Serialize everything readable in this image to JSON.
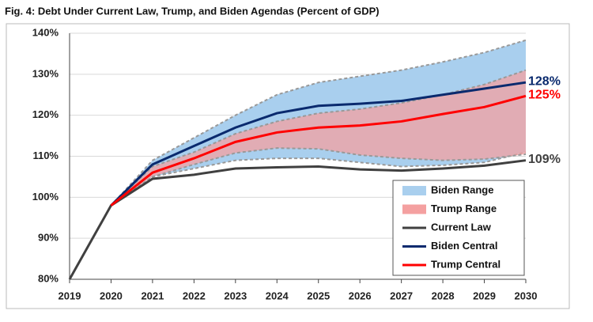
{
  "chart_data": {
    "type": "line",
    "title": "Fig. 4: Debt Under Current Law, Trump, and Biden Agendas (Percent of GDP)",
    "x": [
      2019,
      2020,
      2021,
      2022,
      2023,
      2024,
      2025,
      2026,
      2027,
      2028,
      2029,
      2030
    ],
    "xlim": [
      2019,
      2030
    ],
    "xticks": [
      2019,
      2020,
      2021,
      2022,
      2023,
      2024,
      2025,
      2026,
      2027,
      2028,
      2029,
      2030
    ],
    "ylim": [
      80,
      140
    ],
    "yticks": [
      {
        "value": 80,
        "label": "80%"
      },
      {
        "value": 90,
        "label": "90%"
      },
      {
        "value": 100,
        "label": "100%"
      },
      {
        "value": 110,
        "label": "110%"
      },
      {
        "value": 120,
        "label": "120%"
      },
      {
        "value": 130,
        "label": "130%"
      },
      {
        "value": 140,
        "label": "140%"
      }
    ],
    "grid": true,
    "legend": "lower right",
    "series": [
      {
        "name": "Biden Range",
        "type": "band",
        "color": "#a9cfee",
        "upper": [
          null,
          98,
          109,
          114.5,
          120,
          125,
          128,
          129.5,
          131,
          133,
          135.3,
          138.3
        ],
        "lower": [
          null,
          98,
          105,
          107,
          109,
          109.5,
          109.5,
          108.5,
          107.5,
          107.8,
          108.5,
          111
        ]
      },
      {
        "name": "Trump Range",
        "type": "band",
        "color": "#f4a0a0",
        "upper": [
          null,
          98,
          107.5,
          111,
          115.5,
          118.5,
          120.5,
          121.5,
          123,
          125,
          127.5,
          131
        ],
        "lower": [
          null,
          98,
          105,
          108,
          110.8,
          112,
          111.8,
          110.3,
          109.5,
          109,
          109.3,
          110.5
        ]
      },
      {
        "name": "Current Law",
        "type": "line",
        "color": "#404040",
        "values": [
          80,
          98,
          104.5,
          105.5,
          107,
          107.3,
          107.5,
          106.8,
          106.5,
          107,
          107.7,
          109
        ],
        "value_labels": [
          null,
          null,
          null,
          null,
          null,
          null,
          null,
          null,
          null,
          null,
          null,
          "109%"
        ]
      },
      {
        "name": "Biden Central",
        "type": "line",
        "color": "#0a2a6e",
        "values": [
          null,
          98,
          108,
          112.5,
          117,
          120.5,
          122.3,
          122.8,
          123.5,
          125,
          126.5,
          128
        ],
        "value_labels": [
          null,
          null,
          null,
          null,
          null,
          null,
          null,
          null,
          null,
          null,
          null,
          "128%"
        ]
      },
      {
        "name": "Trump Central",
        "type": "line",
        "color": "#ff0000",
        "values": [
          null,
          98,
          106,
          109.5,
          113.5,
          115.8,
          117,
          117.5,
          118.5,
          120.3,
          122,
          124.7
        ],
        "value_labels": [
          null,
          null,
          null,
          null,
          null,
          null,
          null,
          null,
          null,
          null,
          null,
          "125%"
        ]
      }
    ]
  }
}
